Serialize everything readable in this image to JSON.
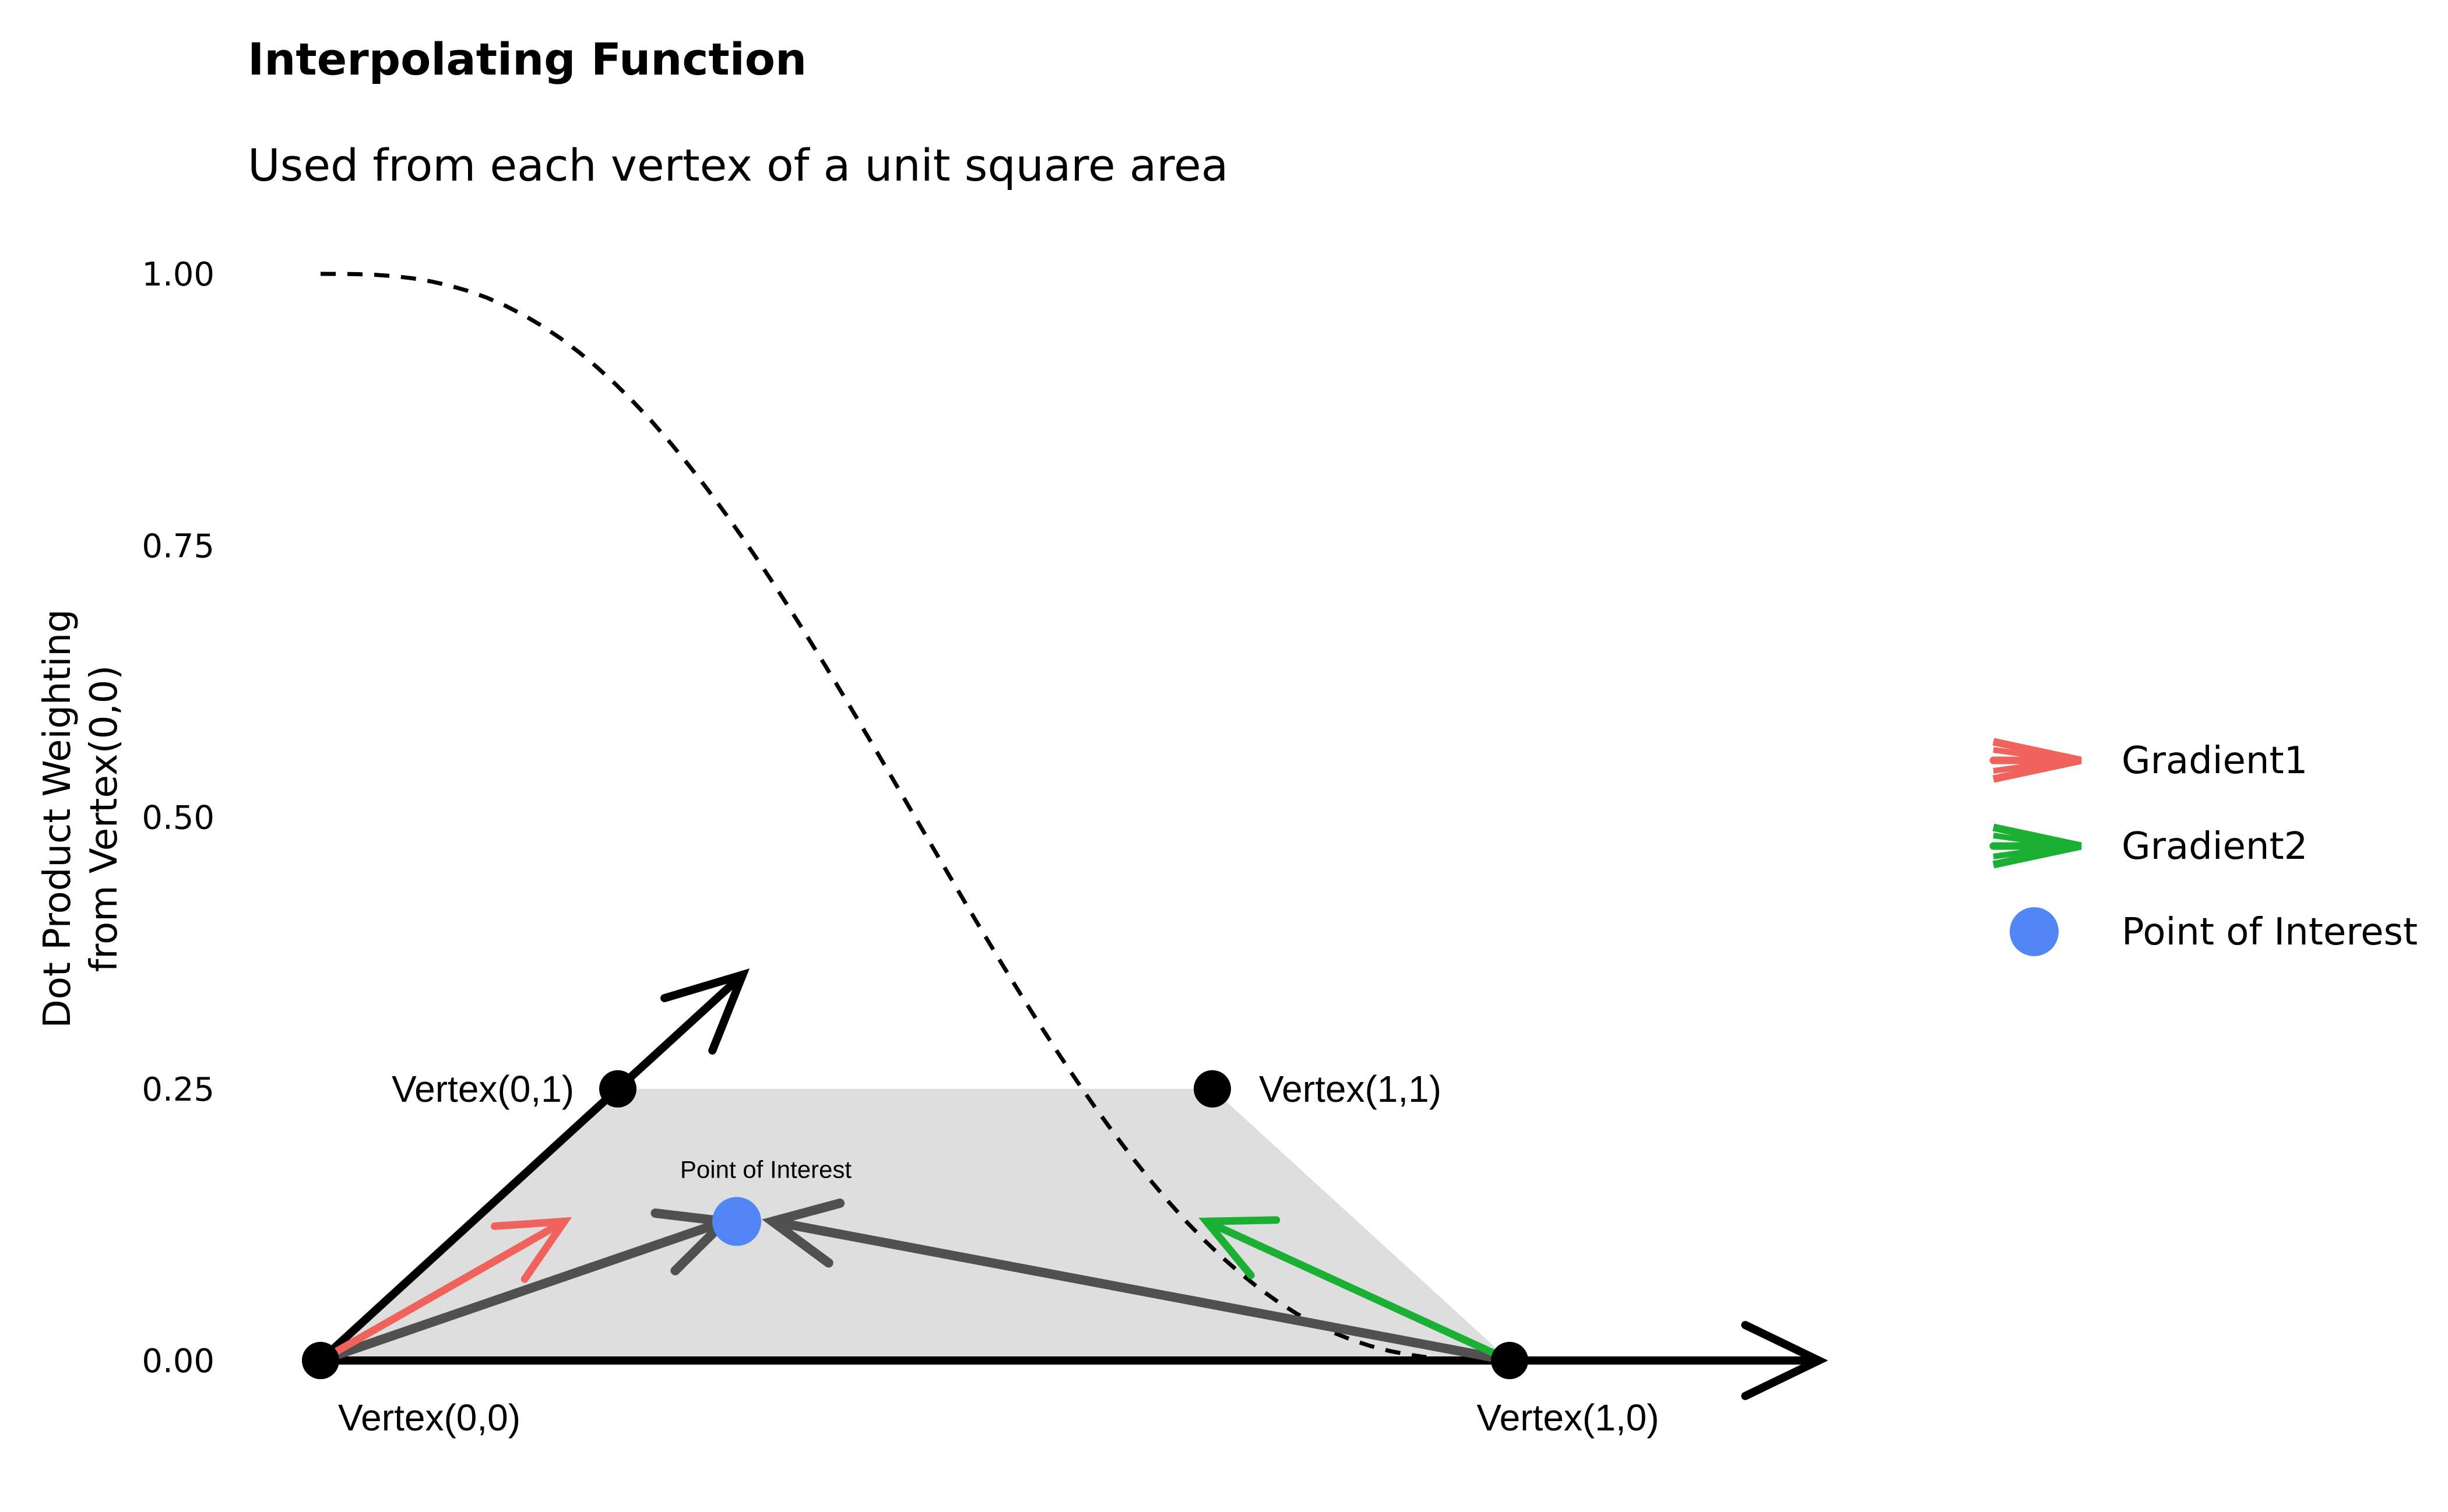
{
  "chart_data": {
    "type": "line",
    "title": "Interpolating Function",
    "subtitle": "Used from each vertex of a unit square area",
    "xlabel": "",
    "ylabel_lines": [
      "Dot Product Weighting",
      "from Vertex(0,0)"
    ],
    "xlim": [
      -0.05,
      1.76
    ],
    "ylim": [
      -0.05,
      1.05
    ],
    "y_ticks": [
      {
        "value": 0.0,
        "label": "0.00"
      },
      {
        "value": 0.25,
        "label": "0.25"
      },
      {
        "value": 0.5,
        "label": "0.50"
      },
      {
        "value": 0.75,
        "label": "0.75"
      },
      {
        "value": 1.0,
        "label": "1.00"
      }
    ],
    "grid": false,
    "fade_curve": {
      "style": "dashed",
      "color": "#000000",
      "description_function": "1 - (6t^5 - 15t^4 + 10t^3)",
      "x_range": [
        0,
        0.93
      ],
      "samples": 60
    },
    "area": {
      "color": "#DEDEDE",
      "points": [
        [
          0,
          0
        ],
        [
          0.25,
          0.25
        ],
        [
          0.75,
          0.25
        ],
        [
          1.0,
          0
        ]
      ]
    },
    "vertices": [
      {
        "label": "Vertex(0,0)",
        "x": 0.0,
        "y": 0.0,
        "label_pos": "below-right"
      },
      {
        "label": "Vertex(0,1)",
        "x": 0.25,
        "y": 0.25,
        "label_pos": "left"
      },
      {
        "label": "Vertex(1,1)",
        "x": 0.75,
        "y": 0.25,
        "label_pos": "right"
      },
      {
        "label": "Vertex(1,0)",
        "x": 1.0,
        "y": 0.0,
        "label_pos": "below"
      }
    ],
    "axis_arrows": [
      {
        "from": [
          0,
          0
        ],
        "to": [
          1.26,
          0
        ],
        "color": "#000000"
      },
      {
        "from": [
          0,
          0
        ],
        "to": [
          0.355,
          0.355
        ],
        "color": "#000000"
      }
    ],
    "vectors": [
      {
        "series": "Gradient1",
        "from": [
          0.0,
          0.0
        ],
        "to": [
          0.205,
          0.128
        ],
        "color": "#F0625C"
      },
      {
        "series": "Gradient2",
        "from": [
          1.0,
          0.0
        ],
        "to": [
          0.745,
          0.128
        ],
        "color": "#1BB033"
      },
      {
        "series": "distance",
        "from": [
          0.0,
          0.0
        ],
        "to": [
          0.34,
          0.128
        ],
        "color": "#505050"
      },
      {
        "series": "distance",
        "from": [
          1.0,
          0.0
        ],
        "to": [
          0.38,
          0.128
        ],
        "color": "#505050"
      }
    ],
    "point_of_interest": {
      "label": "Point of Interest",
      "x": 0.35,
      "y": 0.128,
      "color": "#5285F5"
    },
    "legend": {
      "placement": "right",
      "entries": [
        {
          "name": "Gradient1",
          "kind": "arrow",
          "color": "#F0625C"
        },
        {
          "name": "Gradient2",
          "kind": "arrow",
          "color": "#1BB033"
        },
        {
          "name": "Point of Interest",
          "kind": "point",
          "color": "#5285F5"
        }
      ]
    }
  }
}
